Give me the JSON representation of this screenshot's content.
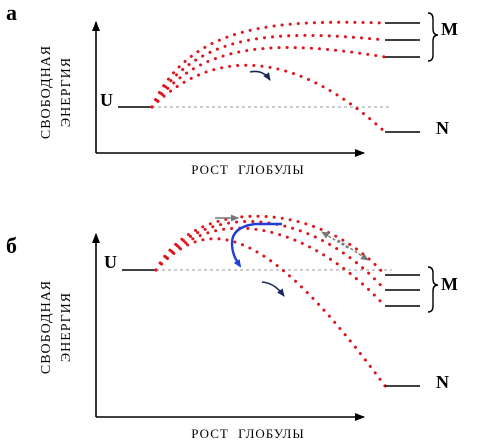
{
  "panels": [
    {
      "letter": "а",
      "yaxis_line1": "СВОБОДНАЯ",
      "yaxis_line2": "ЭНЕРГИЯ",
      "xaxis": "РОСТ ГЛОБУЛЫ",
      "start_state": "U",
      "end_state_native": "N",
      "end_group": "M"
    },
    {
      "letter": "б",
      "yaxis_line1": "СВОБОДНАЯ",
      "yaxis_line2": "ЭНЕРГИЯ",
      "xaxis": "РОСТ ГЛОБУЛЫ",
      "start_state": "U",
      "end_state_native": "N",
      "end_group": "M"
    }
  ],
  "colors": {
    "axis": "#000000",
    "dotted_curve": "#e0141c",
    "dashed_reference": "#999999",
    "barrier_path": "#1f3fd6",
    "gray_arrow": "#777777",
    "dark_arrow": "#1a2a5a",
    "level": "#000000"
  },
  "icons": [
    "brace-icon",
    "arrow-icon"
  ]
}
